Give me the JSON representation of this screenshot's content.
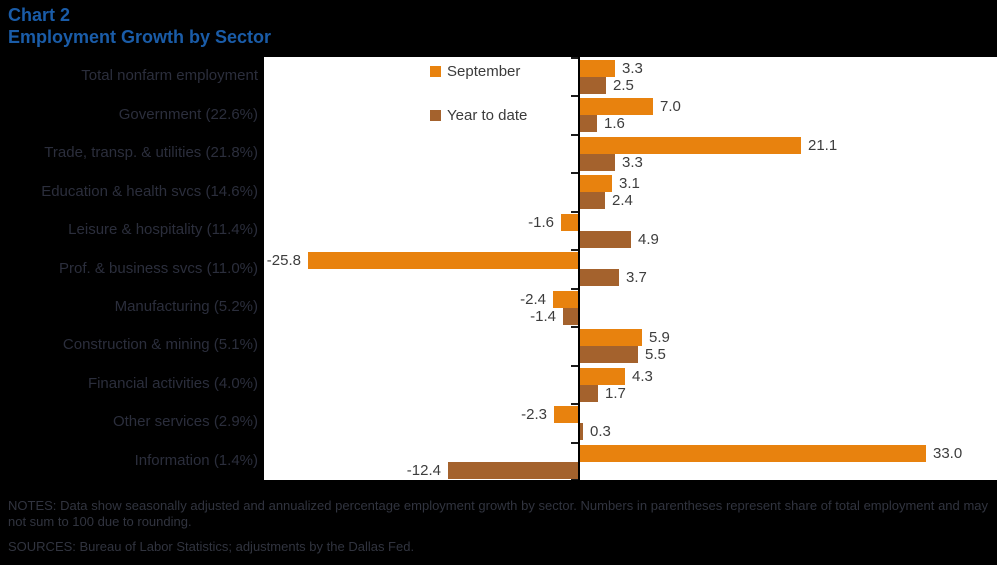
{
  "header": {
    "chart_label": "Chart 2",
    "title": "Employment Growth by Sector"
  },
  "colors": {
    "background": "#000000",
    "plot_background": "#ffffff",
    "title_blue": "#1A5CA8",
    "september_orange": "#E8820E",
    "year_to_date_brown": "#A4622D",
    "value_label_gray": "#3d3d3d"
  },
  "chart_data": {
    "type": "bar",
    "orientation": "horizontal",
    "title": "Employment Growth by Sector",
    "categories": [
      "Total nonfarm employment",
      "Government (22.6%)",
      "Trade, transp. & utilities (21.8%)",
      "Education & health svcs (14.6%)",
      "Leisure & hospitality (11.4%)",
      "Prof. & business svcs (11.0%)",
      "Manufacturing (5.2%)",
      "Construction & mining (5.1%)",
      "Financial activities (4.0%)",
      "Other services (2.9%)",
      "Information (1.4%)"
    ],
    "series": [
      {
        "name": "September",
        "color": "#E8820E",
        "values": [
          3.3,
          7.0,
          21.1,
          3.1,
          -1.6,
          -25.8,
          -2.4,
          5.9,
          4.3,
          -2.3,
          33.0
        ]
      },
      {
        "name": "Year to date",
        "color": "#A4622D",
        "values": [
          2.5,
          1.6,
          3.3,
          2.4,
          4.9,
          3.7,
          -1.4,
          5.5,
          1.7,
          0.3,
          -12.4
        ]
      }
    ],
    "xlim": [
      -30,
      40
    ],
    "grid": false,
    "legend_position": "top, left of zero axis",
    "value_labels": "one decimal, outside bar ends"
  },
  "notes": {
    "notes_text": "NOTES: Data show seasonally adjusted and annualized percentage employment growth by sector. Numbers in parentheses represent share of total employment and may not sum to 100 due to rounding.",
    "sources_text": "SOURCES: Bureau of Labor Statistics; adjustments by the Dallas Fed."
  }
}
